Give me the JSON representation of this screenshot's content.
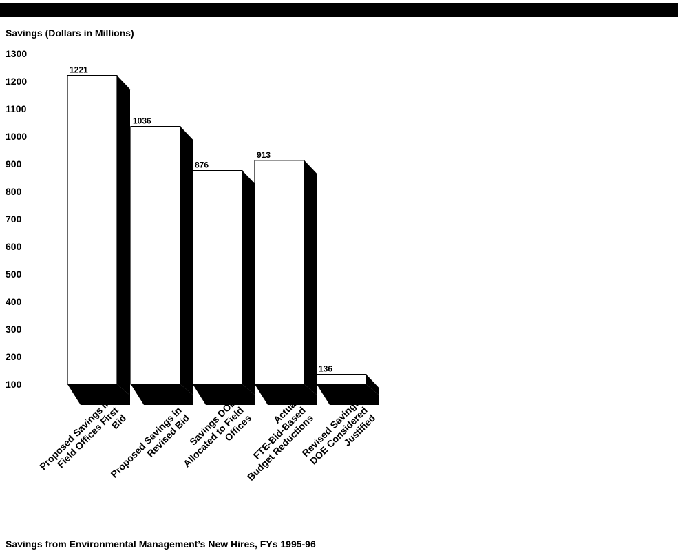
{
  "chart_data": {
    "type": "bar",
    "ylabel": "Savings (Dollars in Millions)",
    "title": "Savings from Environmental Management’s New Hires, FYs 1995-96",
    "yticks": [
      "1300",
      "1200",
      "1100",
      "1000",
      "900",
      "800",
      "700",
      "600",
      "500",
      "400",
      "300",
      "200",
      "100"
    ],
    "ylim": [
      100,
      1300
    ],
    "categories": [
      [
        "Proposed Savings in",
        "Field Offices First",
        "Bid"
      ],
      [
        "Proposed Savings in",
        "Revised Bid"
      ],
      [
        "Savings DOE",
        "Allocated to Field",
        "Offices"
      ],
      [
        "Actual",
        "FTE-Bid-Based",
        "Budget Reductions"
      ],
      [
        "Revised Savings",
        "DOE Considered",
        "Justified"
      ]
    ],
    "values": [
      1221,
      1036,
      876,
      913,
      136
    ],
    "value_labels": [
      "1221",
      "1036",
      "876",
      "913",
      "136"
    ],
    "grid": false,
    "legend": "none",
    "colors": {
      "bar_face": "#ffffff",
      "bar_side": "#000000",
      "text": "#000000"
    }
  }
}
